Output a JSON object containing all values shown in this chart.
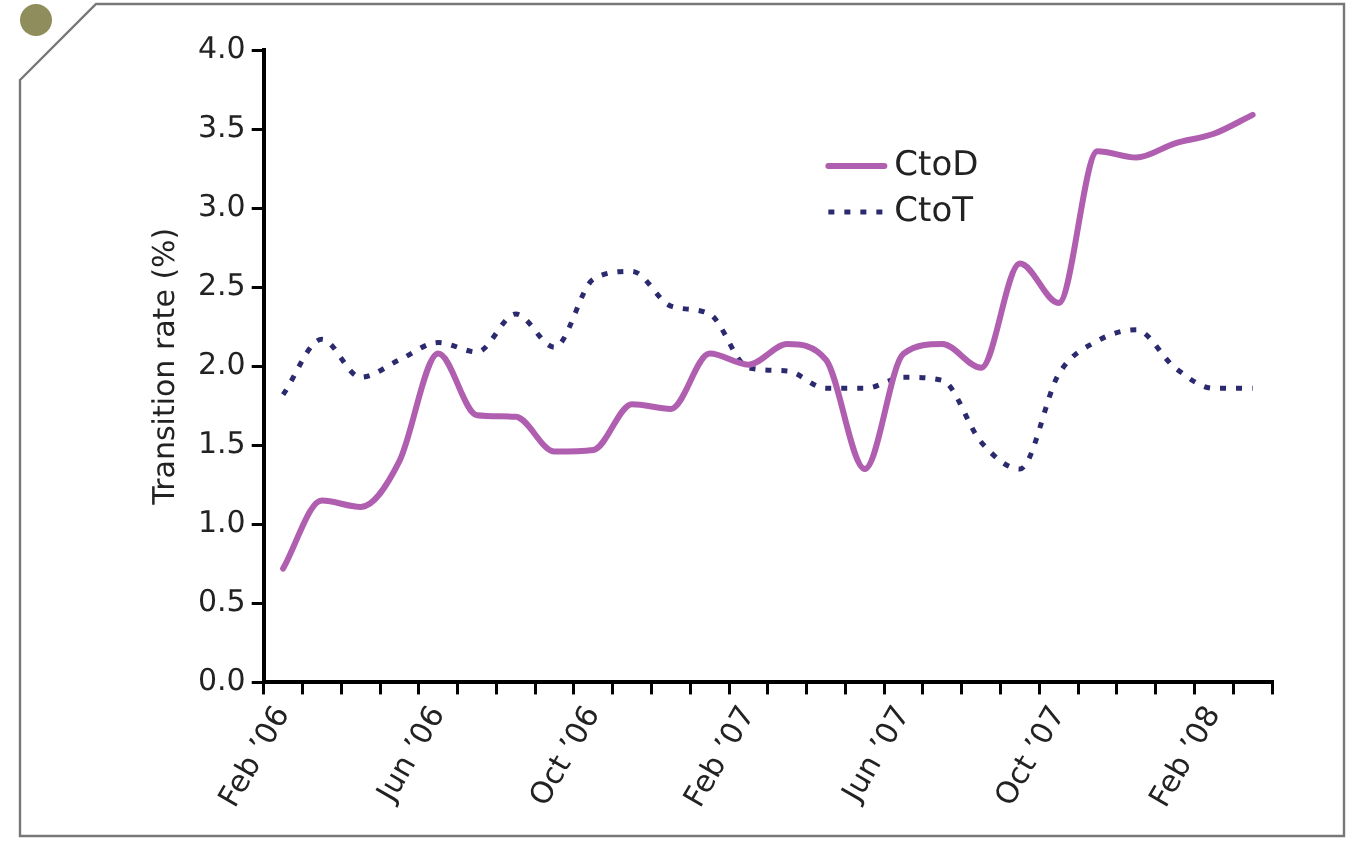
{
  "chart_data": {
    "type": "line",
    "ylabel": "Transition rate (%)",
    "categories": [
      "Feb ’06",
      null,
      null,
      null,
      "Jun ’06",
      null,
      null,
      null,
      "Oct ’06",
      null,
      null,
      null,
      "Feb ’07",
      null,
      null,
      null,
      "Jun ’07",
      null,
      null,
      null,
      "Oct ’07",
      null,
      null,
      null,
      "Feb ’08",
      null
    ],
    "series": [
      {
        "name": "CtoD",
        "color": "#b05fb0",
        "line_style": "solid",
        "values": [
          0.72,
          1.15,
          1.11,
          1.4,
          2.08,
          1.69,
          1.68,
          1.46,
          1.47,
          1.76,
          1.73,
          2.08,
          2.01,
          2.14,
          2.04,
          1.35,
          2.08,
          2.14,
          1.99,
          2.65,
          2.4,
          3.36,
          3.32,
          3.41,
          3.47,
          3.59
        ]
      },
      {
        "name": "CtoT",
        "color": "#2b2a6e",
        "line_style": "dotted",
        "values": [
          1.82,
          2.17,
          1.93,
          2.04,
          2.15,
          2.09,
          2.33,
          2.12,
          2.55,
          2.6,
          2.38,
          2.33,
          1.99,
          1.97,
          1.86,
          1.86,
          1.93,
          1.91,
          1.52,
          1.35,
          1.95,
          2.16,
          2.23,
          1.99,
          1.86,
          1.86
        ]
      }
    ],
    "ylim": [
      0,
      4
    ],
    "yticks": [
      {
        "value": 0,
        "label": "0.0"
      },
      {
        "value": 0.5,
        "label": "0.5"
      },
      {
        "value": 1,
        "label": "1.0"
      },
      {
        "value": 1.5,
        "label": "1.5"
      },
      {
        "value": 2,
        "label": "2.0"
      },
      {
        "value": 2.5,
        "label": "2.5"
      },
      {
        "value": 3,
        "label": "3.0"
      },
      {
        "value": 3.5,
        "label": "3.5"
      },
      {
        "value": 4,
        "label": "4.0"
      }
    ],
    "grid": false,
    "legend": "top right",
    "marker": "none"
  }
}
